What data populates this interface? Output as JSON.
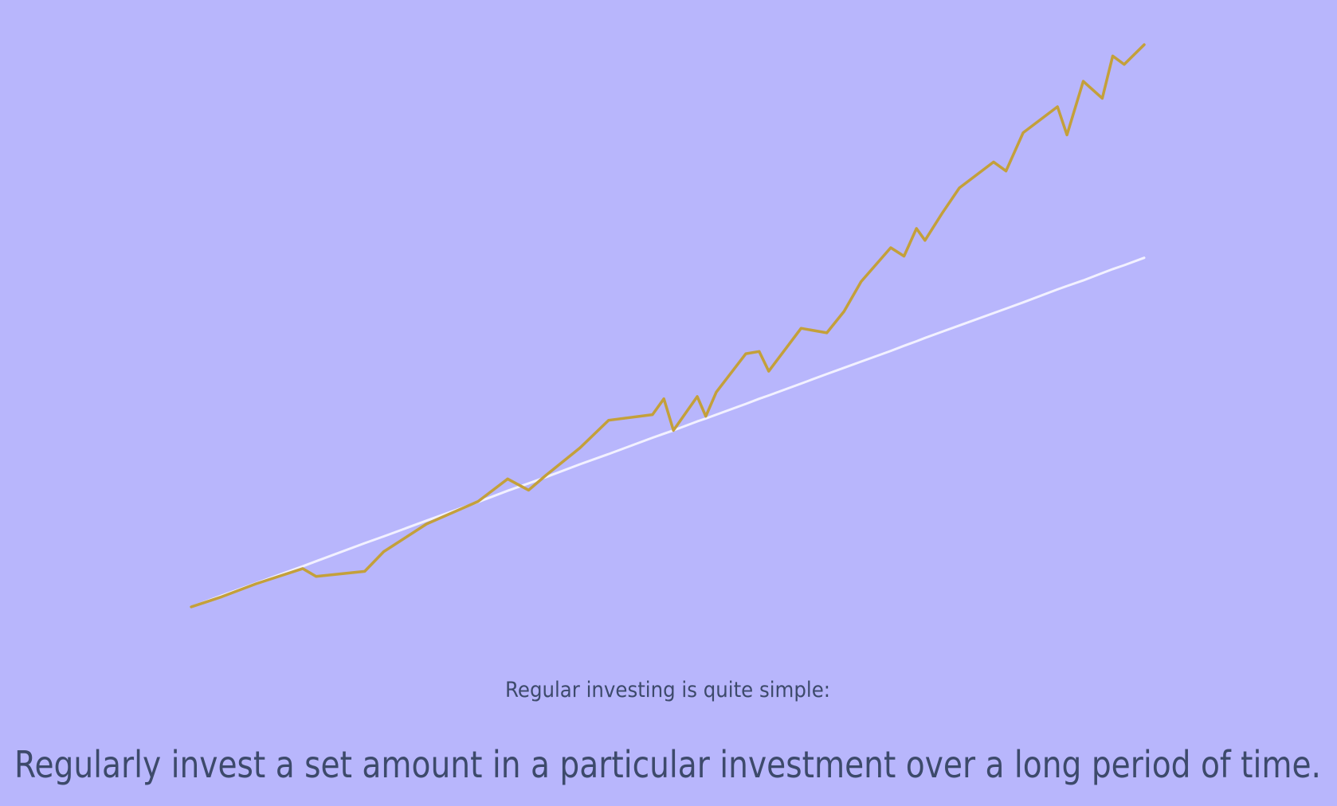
{
  "chart_data": {
    "type": "line",
    "x": [
      0,
      3.2,
      6.8,
      11.7,
      13.1,
      18.2,
      20.2,
      24.7,
      30.1,
      33.2,
      35.4,
      37.2,
      40.8,
      43.8,
      48.4,
      49.6,
      50.6,
      53.1,
      54.0,
      55.1,
      58.2,
      59.6,
      60.6,
      64.0,
      66.7,
      68.5,
      70.3,
      73.4,
      74.8,
      76.1,
      77.0,
      78.8,
      80.6,
      84.2,
      85.5,
      87.3,
      90.9,
      91.9,
      93.6,
      95.6,
      96.7,
      97.9,
      100
    ],
    "xlim": [
      0,
      100
    ],
    "ylim": [
      0,
      100
    ],
    "series": [
      {
        "color": "#f2f1ff",
        "values": [
          0,
          2.0,
          4.2,
          7.2,
          8.1,
          11.3,
          12.5,
          15.3,
          18.6,
          20.6,
          21.9,
          23.0,
          25.3,
          27.1,
          30.0,
          30.7,
          31.3,
          32.9,
          33.4,
          34.1,
          36.0,
          36.9,
          37.5,
          39.6,
          41.3,
          42.4,
          43.5,
          45.4,
          46.3,
          47.1,
          47.7,
          48.8,
          49.9,
          52.1,
          52.9,
          54.0,
          56.3,
          56.9,
          57.9,
          59.2,
          59.9,
          60.6,
          61.9
        ]
      },
      {
        "color": "#c4a03a",
        "values": [
          0,
          1.8,
          4.1,
          6.8,
          5.4,
          6.3,
          9.8,
          14.7,
          18.7,
          22.7,
          20.7,
          23.3,
          28.2,
          33.1,
          34.1,
          36.9,
          31.3,
          37.3,
          33.8,
          38.1,
          44.9,
          45.3,
          41.8,
          49.4,
          48.6,
          52.4,
          57.7,
          63.7,
          62.2,
          67.1,
          65.0,
          69.8,
          74.3,
          78.9,
          77.3,
          84.1,
          88.7,
          83.7,
          93.2,
          90.2,
          97.7,
          96.2,
          99.7
        ]
      }
    ]
  },
  "text": {
    "intro": "Regular investing is quite simple:",
    "headline": "Regularly invest a set amount in a particular investment over a long period of time."
  }
}
